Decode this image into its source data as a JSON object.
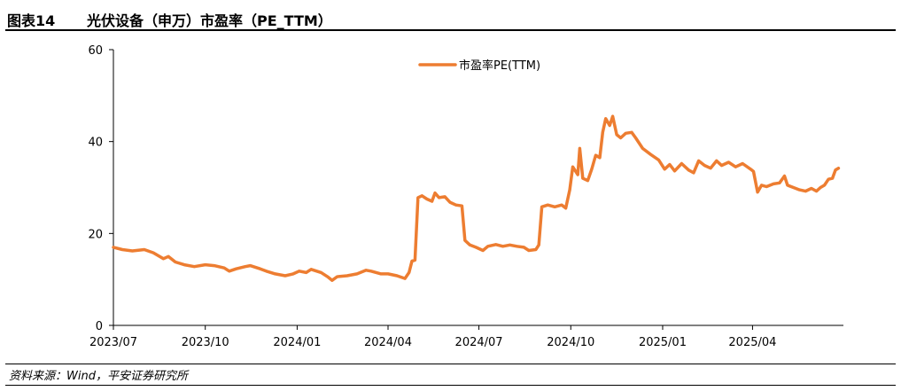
{
  "header": {
    "figure_number": "图表14",
    "title": "光伏设备（申万）市盈率（PE_TTM）"
  },
  "source": "资料来源：Wind，平安证券研究所",
  "colors": {
    "series": "#ED7D31",
    "axis": "#000000"
  },
  "chart_data": {
    "type": "line",
    "title": "",
    "xlabel": "",
    "ylabel": "",
    "ylim": [
      0,
      60
    ],
    "yticks": [
      0,
      20,
      40,
      60
    ],
    "x_tick_labels": [
      "2023/07",
      "2023/10",
      "2024/01",
      "2024/04",
      "2024/07",
      "2024/10",
      "2025/01",
      "2025/04"
    ],
    "legend_position": "top-center",
    "grid": false,
    "series": [
      {
        "name": "市盈率PE(TTM)",
        "points": [
          [
            "2023-07-01",
            17.0
          ],
          [
            "2023-07-10",
            16.5
          ],
          [
            "2023-07-20",
            16.2
          ],
          [
            "2023-08-01",
            16.5
          ],
          [
            "2023-08-10",
            15.8
          ],
          [
            "2023-08-20",
            14.5
          ],
          [
            "2023-08-25",
            15.0
          ],
          [
            "2023-09-01",
            13.8
          ],
          [
            "2023-09-10",
            13.2
          ],
          [
            "2023-09-20",
            12.8
          ],
          [
            "2023-10-01",
            13.2
          ],
          [
            "2023-10-10",
            13.0
          ],
          [
            "2023-10-20",
            12.5
          ],
          [
            "2023-10-25",
            11.8
          ],
          [
            "2023-11-01",
            12.3
          ],
          [
            "2023-11-10",
            12.8
          ],
          [
            "2023-11-15",
            13.0
          ],
          [
            "2023-11-25",
            12.3
          ],
          [
            "2023-12-01",
            11.8
          ],
          [
            "2023-12-10",
            11.2
          ],
          [
            "2023-12-20",
            10.8
          ],
          [
            "2023-12-28",
            11.2
          ],
          [
            "2024-01-03",
            11.8
          ],
          [
            "2024-01-10",
            11.5
          ],
          [
            "2024-01-15",
            12.2
          ],
          [
            "2024-01-25",
            11.5
          ],
          [
            "2024-02-01",
            10.5
          ],
          [
            "2024-02-05",
            9.8
          ],
          [
            "2024-02-10",
            10.6
          ],
          [
            "2024-02-20",
            10.8
          ],
          [
            "2024-03-01",
            11.2
          ],
          [
            "2024-03-10",
            12.0
          ],
          [
            "2024-03-15",
            11.8
          ],
          [
            "2024-03-25",
            11.2
          ],
          [
            "2024-04-01",
            11.2
          ],
          [
            "2024-04-10",
            10.8
          ],
          [
            "2024-04-18",
            10.2
          ],
          [
            "2024-04-22",
            11.5
          ],
          [
            "2024-04-25",
            14.0
          ],
          [
            "2024-04-28",
            14.2
          ],
          [
            "2024-05-01",
            27.8
          ],
          [
            "2024-05-05",
            28.2
          ],
          [
            "2024-05-10",
            27.5
          ],
          [
            "2024-05-15",
            27.0
          ],
          [
            "2024-05-18",
            28.8
          ],
          [
            "2024-05-22",
            27.8
          ],
          [
            "2024-05-28",
            28.0
          ],
          [
            "2024-06-02",
            26.8
          ],
          [
            "2024-06-08",
            26.2
          ],
          [
            "2024-06-14",
            26.0
          ],
          [
            "2024-06-17",
            18.5
          ],
          [
            "2024-06-22",
            17.5
          ],
          [
            "2024-06-28",
            17.0
          ],
          [
            "2024-07-05",
            16.3
          ],
          [
            "2024-07-10",
            17.2
          ],
          [
            "2024-07-18",
            17.6
          ],
          [
            "2024-07-25",
            17.2
          ],
          [
            "2024-08-01",
            17.5
          ],
          [
            "2024-08-08",
            17.2
          ],
          [
            "2024-08-15",
            17.0
          ],
          [
            "2024-08-20",
            16.3
          ],
          [
            "2024-08-27",
            16.5
          ],
          [
            "2024-08-30",
            17.5
          ],
          [
            "2024-09-02",
            25.8
          ],
          [
            "2024-09-08",
            26.2
          ],
          [
            "2024-09-15",
            25.8
          ],
          [
            "2024-09-22",
            26.2
          ],
          [
            "2024-09-26",
            25.5
          ],
          [
            "2024-09-30",
            29.5
          ],
          [
            "2024-10-03",
            34.5
          ],
          [
            "2024-10-08",
            32.8
          ],
          [
            "2024-10-10",
            38.5
          ],
          [
            "2024-10-13",
            32.0
          ],
          [
            "2024-10-18",
            31.5
          ],
          [
            "2024-10-22",
            34.0
          ],
          [
            "2024-10-26",
            37.0
          ],
          [
            "2024-10-30",
            36.5
          ],
          [
            "2024-11-02",
            42.0
          ],
          [
            "2024-11-05",
            45.0
          ],
          [
            "2024-11-09",
            43.5
          ],
          [
            "2024-11-12",
            45.5
          ],
          [
            "2024-11-16",
            41.5
          ],
          [
            "2024-11-20",
            40.8
          ],
          [
            "2024-11-25",
            41.8
          ],
          [
            "2024-12-01",
            42.0
          ],
          [
            "2024-12-05",
            40.8
          ],
          [
            "2024-12-12",
            38.5
          ],
          [
            "2024-12-20",
            37.2
          ],
          [
            "2024-12-28",
            36.0
          ],
          [
            "2025-01-03",
            34.0
          ],
          [
            "2025-01-08",
            35.0
          ],
          [
            "2025-01-13",
            33.6
          ],
          [
            "2025-01-20",
            35.2
          ],
          [
            "2025-01-27",
            33.8
          ],
          [
            "2025-02-01",
            33.2
          ],
          [
            "2025-02-06",
            35.8
          ],
          [
            "2025-02-12",
            34.8
          ],
          [
            "2025-02-18",
            34.2
          ],
          [
            "2025-02-24",
            35.8
          ],
          [
            "2025-03-01",
            34.8
          ],
          [
            "2025-03-08",
            35.5
          ],
          [
            "2025-03-15",
            34.5
          ],
          [
            "2025-03-22",
            35.2
          ],
          [
            "2025-03-30",
            34.0
          ],
          [
            "2025-04-02",
            33.5
          ],
          [
            "2025-04-06",
            29.0
          ],
          [
            "2025-04-10",
            30.5
          ],
          [
            "2025-04-15",
            30.2
          ],
          [
            "2025-04-22",
            30.8
          ],
          [
            "2025-04-28",
            31.0
          ],
          [
            "2025-05-03",
            32.5
          ],
          [
            "2025-05-06",
            30.5
          ],
          [
            "2025-05-12",
            30.0
          ],
          [
            "2025-05-18",
            29.5
          ],
          [
            "2025-05-24",
            29.2
          ],
          [
            "2025-05-30",
            29.8
          ],
          [
            "2025-06-04",
            29.2
          ],
          [
            "2025-06-08",
            30.0
          ],
          [
            "2025-06-12",
            30.5
          ],
          [
            "2025-06-16",
            31.8
          ],
          [
            "2025-06-20",
            32.0
          ],
          [
            "2025-06-23",
            33.8
          ],
          [
            "2025-06-26",
            34.2
          ]
        ]
      }
    ]
  }
}
